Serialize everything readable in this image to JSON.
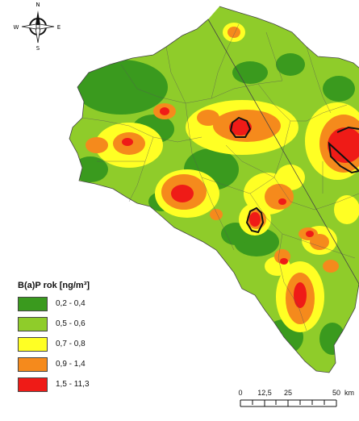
{
  "compass": {
    "north": "N",
    "south": "S",
    "east": "E",
    "west": "W"
  },
  "legend": {
    "title": "B(a)P rok [ng/m³]",
    "items": [
      {
        "label": "0,2 - 0,4",
        "color": "#3a9a1e"
      },
      {
        "label": "0,5 - 0,6",
        "color": "#8fcc2a"
      },
      {
        "label": "0,7 - 0,8",
        "color": "#ffff24"
      },
      {
        "label": "0,9 - 1,4",
        "color": "#f58a1c"
      },
      {
        "label": "1,5 - 11,3",
        "color": "#ef1b17"
      }
    ]
  },
  "scale_bar": {
    "labels": [
      "0",
      "12,5",
      "25",
      "50",
      "km"
    ]
  }
}
